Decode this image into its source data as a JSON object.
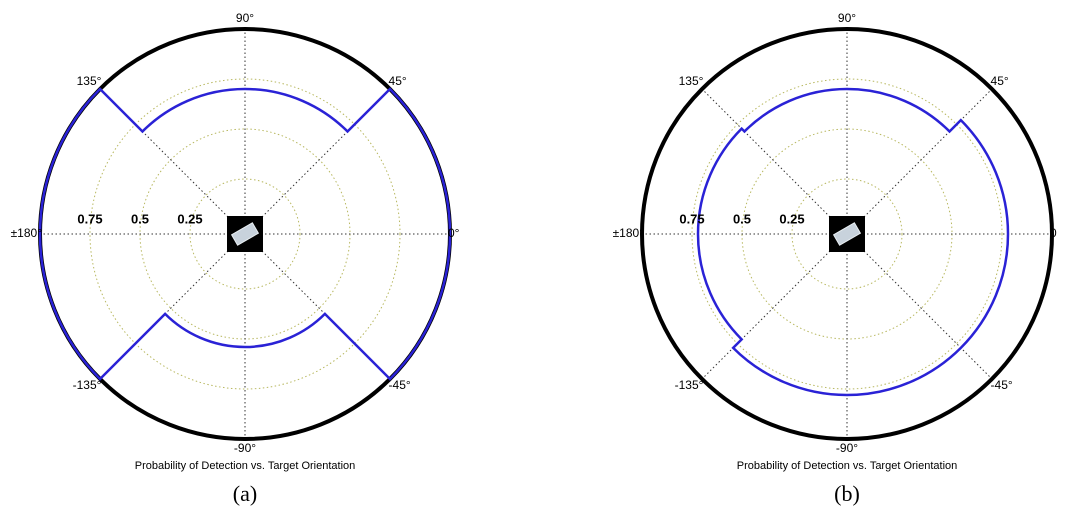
{
  "chart_data": [
    {
      "type": "polar",
      "title": "Probability of Detection vs. Target Orientation",
      "caption": "(a)",
      "rlim": [
        0,
        1
      ],
      "rticks": [
        0.25,
        0.5,
        0.75
      ],
      "frame_color": "#000000",
      "grid": true,
      "thetaticks": [
        {
          "value": 0,
          "label": "0°"
        },
        {
          "value": 45,
          "label": "45°"
        },
        {
          "value": 90,
          "label": "90°"
        },
        {
          "value": 135,
          "label": "135°"
        },
        {
          "value": 180,
          "label": "±180°"
        },
        {
          "value": -135,
          "label": "-135°"
        },
        {
          "value": -90,
          "label": "-90°"
        },
        {
          "value": -45,
          "label": "-45°"
        }
      ],
      "series": [
        {
          "color": "#2a22d6",
          "theta": [
            0,
            45,
            45,
            135,
            135,
            225,
            225,
            315,
            315,
            360
          ],
          "r": [
            1,
            1,
            0.7,
            0.7,
            1,
            1,
            0.54,
            0.54,
            1,
            1
          ]
        }
      ]
    },
    {
      "type": "polar",
      "title": "Probability of Detection vs. Target Orientation",
      "caption": "(b)",
      "rlim": [
        0,
        1
      ],
      "rticks": [
        0.25,
        0.5,
        0.75
      ],
      "frame_color": "#000000",
      "grid": true,
      "thetaticks": [
        {
          "value": 0,
          "label": "0"
        },
        {
          "value": 45,
          "label": "45°"
        },
        {
          "value": 90,
          "label": "90°"
        },
        {
          "value": 135,
          "label": "135°"
        },
        {
          "value": 180,
          "label": "±180°"
        },
        {
          "value": -135,
          "label": "-135°"
        },
        {
          "value": -90,
          "label": "-90°"
        },
        {
          "value": -45,
          "label": "-45°"
        }
      ],
      "series": [
        {
          "color": "#2a22d6",
          "theta": [
            0,
            45,
            45,
            135,
            135,
            225,
            225,
            315,
            315,
            360
          ],
          "r": [
            0.78,
            0.78,
            0.7,
            0.7,
            0.72,
            0.72,
            0.78,
            0.78,
            0.78,
            0.78
          ]
        }
      ]
    }
  ]
}
